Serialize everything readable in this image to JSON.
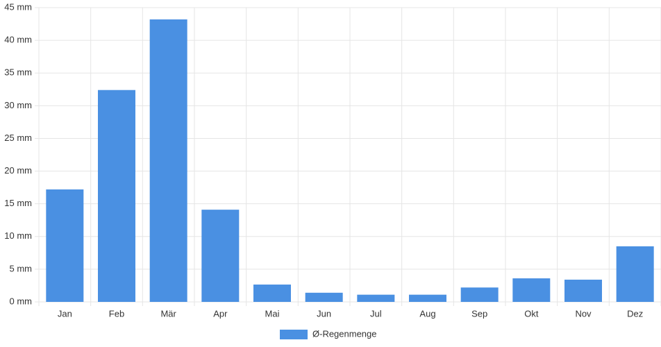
{
  "chart_data": {
    "type": "bar",
    "categories": [
      "Jan",
      "Feb",
      "Mär",
      "Apr",
      "Mai",
      "Jun",
      "Jul",
      "Aug",
      "Sep",
      "Okt",
      "Nov",
      "Dez"
    ],
    "series": [
      {
        "name": "Ø-Regenmenge",
        "color": "#4a90e2",
        "values": [
          17.2,
          32.4,
          43.2,
          14.1,
          2.65,
          1.4,
          1.1,
          1.1,
          2.2,
          3.6,
          3.4,
          8.5
        ]
      }
    ],
    "ylim": [
      0,
      45
    ],
    "yticks": [
      {
        "value": 0,
        "label": "0 mm"
      },
      {
        "value": 5,
        "label": "5 mm"
      },
      {
        "value": 10,
        "label": "10 mm"
      },
      {
        "value": 15,
        "label": "15 mm"
      },
      {
        "value": 20,
        "label": "20 mm"
      },
      {
        "value": 25,
        "label": "25 mm"
      },
      {
        "value": 30,
        "label": "30 mm"
      },
      {
        "value": 35,
        "label": "35 mm"
      },
      {
        "value": 40,
        "label": "40 mm"
      },
      {
        "value": 45,
        "label": "45 mm"
      }
    ],
    "grid": true,
    "legend": "bottom"
  }
}
